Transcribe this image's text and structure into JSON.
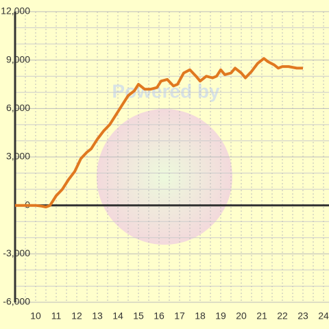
{
  "chart_data": {
    "type": "line",
    "watermark": "Powered by",
    "xlim": [
      9,
      24.4
    ],
    "ylim": [
      -6000,
      12000
    ],
    "xticks": [
      10,
      11,
      12,
      13,
      14,
      15,
      16,
      17,
      18,
      19,
      20,
      21,
      22,
      23,
      24
    ],
    "xminorticks": [
      9.5,
      10.5,
      11.5,
      12.5,
      13.5,
      14.5,
      15.5,
      16.5,
      17.5,
      18.5,
      19.5,
      20.5,
      21.5,
      22.5,
      23.5
    ],
    "yticks": [
      {
        "value": -6000,
        "label": "-6,000"
      },
      {
        "value": -3000,
        "label": "-3,000"
      },
      0,
      {
        "value": 3000,
        "label": "3,000"
      },
      {
        "value": 6000,
        "label": "6,000"
      },
      {
        "value": 9000,
        "label": "9,000"
      },
      {
        "value": 12000,
        "label": "12,000"
      }
    ],
    "yminorticks": [
      -5000,
      -4000,
      -2000,
      -1000,
      1000,
      2000,
      4000,
      5000,
      7000,
      8000,
      10000,
      11000
    ],
    "grid": true,
    "series": [
      {
        "color": "#e07820",
        "x": [
          9.0,
          10.0,
          10.3,
          10.5,
          10.7,
          11.0,
          11.3,
          11.6,
          11.9,
          12.2,
          12.5,
          12.7,
          13.0,
          13.3,
          13.6,
          13.9,
          14.2,
          14.5,
          14.8,
          15.0,
          15.3,
          15.6,
          15.9,
          16.1,
          16.4,
          16.7,
          16.9,
          17.2,
          17.5,
          17.8,
          18.0,
          18.3,
          18.6,
          18.8,
          19.0,
          19.2,
          19.5,
          19.7,
          20.0,
          20.2,
          20.5,
          20.8,
          21.1,
          21.3,
          21.6,
          21.8,
          22.0,
          22.3,
          22.7,
          23.0
        ],
        "values": [
          0,
          0,
          -50,
          -100,
          0,
          600,
          1000,
          1600,
          2100,
          2900,
          3300,
          3500,
          4100,
          4600,
          5000,
          5600,
          6200,
          6800,
          7100,
          7500,
          7200,
          7200,
          7300,
          7700,
          7800,
          7400,
          7500,
          8200,
          8400,
          8000,
          7700,
          8000,
          7900,
          8000,
          8400,
          8100,
          8200,
          8500,
          8200,
          7900,
          8300,
          8800,
          9100,
          8900,
          8700,
          8500,
          8600,
          8600,
          8500,
          8500
        ]
      }
    ]
  }
}
